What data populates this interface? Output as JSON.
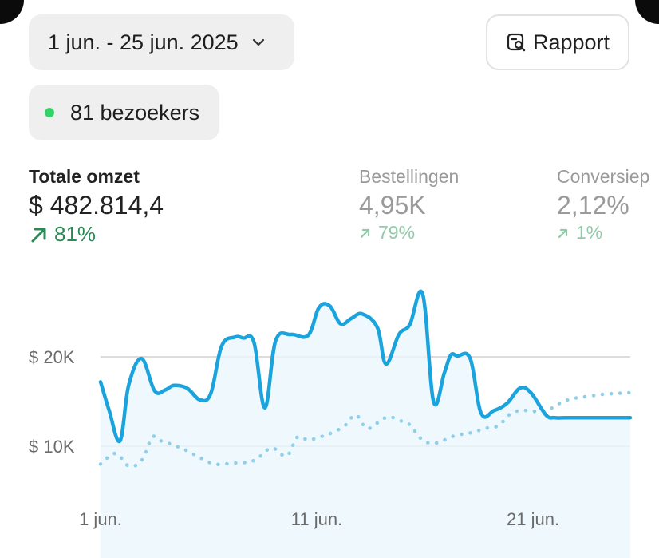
{
  "date_range": {
    "label": "1 jun. - 25 jun. 2025"
  },
  "report_button": {
    "label": "Rapport"
  },
  "visitors": {
    "label": "81 bezoekers",
    "status_color": "#32d46a"
  },
  "metrics": [
    {
      "label": "Totale omzet",
      "value": "$ 482.814,4",
      "delta": "81%"
    },
    {
      "label": "Bestellingen",
      "value": "4,95K",
      "delta": "79%"
    },
    {
      "label": "Conversiep",
      "value": "2,12%",
      "delta": "1%"
    }
  ],
  "chart_data": {
    "type": "line",
    "y_tick_labels": [
      "$ 20K",
      "$ 10K"
    ],
    "y_ticks": [
      20000,
      10000
    ],
    "x_tick_labels": [
      "1 jun.",
      "11 jun.",
      "21 jun."
    ],
    "x_ticks": [
      1,
      11,
      21
    ],
    "xlim": [
      1,
      25.5
    ],
    "ylim": [
      6000,
      28000
    ],
    "grid": true,
    "colors": {
      "current": "#1aa3dd",
      "previous": "#8fcfe8",
      "fill": "#eaf6fc"
    },
    "series": [
      {
        "style": "solid",
        "x": [
          1,
          1.4,
          1.9,
          2.3,
          2.9,
          3.5,
          4.0,
          4.4,
          5.0,
          5.6,
          6.1,
          6.6,
          7.2,
          7.6,
          8.1,
          8.6,
          9.1,
          9.8,
          10.6,
          11.1,
          11.6,
          12.1,
          12.6,
          13.1,
          13.8,
          14.2,
          14.8,
          15.3,
          15.9,
          16.4,
          16.9,
          17.2,
          17.5,
          18.1,
          18.6,
          19.2,
          19.8,
          20.4,
          20.9,
          21.6,
          22.0,
          22.5,
          23.1,
          23.6,
          24.3,
          24.9,
          25.5
        ],
        "values": [
          17200,
          14000,
          10600,
          16800,
          19800,
          16200,
          16300,
          16800,
          16500,
          15200,
          15900,
          21200,
          22200,
          22100,
          21600,
          14300,
          21800,
          22500,
          22400,
          25500,
          25700,
          23700,
          24300,
          24800,
          23300,
          19200,
          22500,
          23600,
          27000,
          15000,
          18200,
          20200,
          20100,
          19800,
          13700,
          14000,
          14800,
          16500,
          16000,
          13500,
          13200,
          13200,
          13200,
          13200,
          13200,
          13200,
          13200
        ]
      },
      {
        "style": "dotted",
        "x": [
          1,
          1.7,
          2.3,
          2.9,
          3.4,
          3.8,
          4.3,
          5.0,
          5.7,
          6.3,
          7.1,
          8.1,
          8.9,
          9.6,
          10.1,
          10.6,
          11.1,
          11.7,
          12.3,
          12.8,
          13.3,
          13.8,
          14.3,
          14.8,
          15.3,
          15.8,
          16.3,
          16.8,
          17.4,
          17.9,
          18.3,
          18.8,
          19.4,
          20.0,
          20.6,
          21.2,
          21.8,
          22.4,
          23.0,
          23.6,
          24.2,
          24.8,
          25.5
        ],
        "values": [
          8000,
          9200,
          7800,
          8400,
          11000,
          10600,
          10200,
          9500,
          8600,
          8000,
          8100,
          8400,
          9800,
          8900,
          11000,
          10700,
          11000,
          11500,
          12300,
          13500,
          12000,
          12600,
          13300,
          12900,
          12400,
          10900,
          10300,
          10600,
          11200,
          11400,
          11600,
          12000,
          12300,
          13700,
          14000,
          13900,
          14200,
          15000,
          15400,
          15600,
          15800,
          15900,
          16000
        ]
      }
    ]
  }
}
